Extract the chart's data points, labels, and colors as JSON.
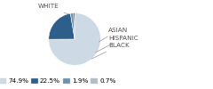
{
  "sizes": [
    74.9,
    22.5,
    1.9,
    0.7
  ],
  "colors": [
    "#cdd9e5",
    "#2e5f8a",
    "#6a93b0",
    "#1a3a5c"
  ],
  "legend_labels": [
    "74.9%",
    "22.5%",
    "1.9%",
    "0.7%"
  ],
  "legend_colors": [
    "#cdd9e5",
    "#2e5f8a",
    "#6a93b0",
    "#b0bec8"
  ],
  "background_color": "#ffffff",
  "font_size": 5.2,
  "label_color": "#555555",
  "line_color": "#999999"
}
